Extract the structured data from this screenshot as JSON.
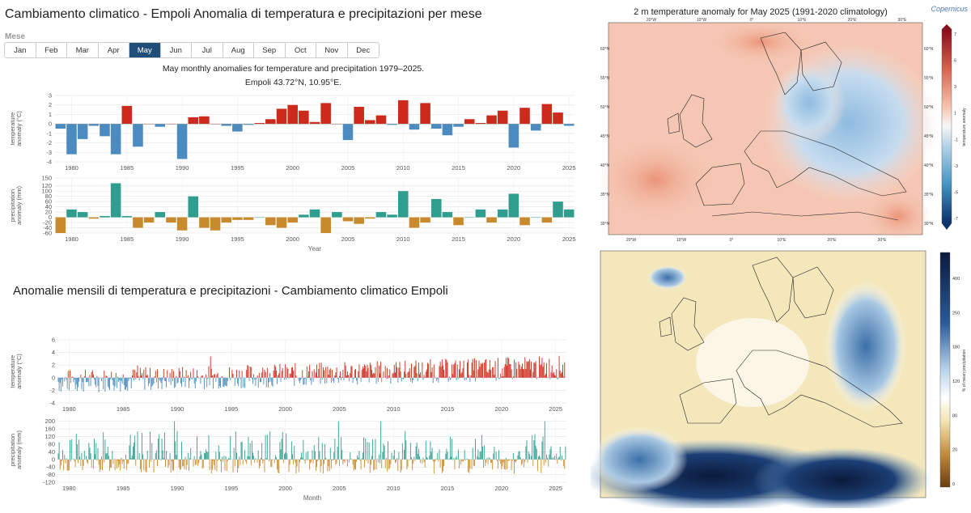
{
  "header": {
    "title": "Cambiamento climatico - Empoli Anomalia di temperatura e precipitazioni per mese",
    "month_label": "Mese",
    "months": [
      "Jan",
      "Feb",
      "Mar",
      "Apr",
      "May",
      "Jun",
      "Jul",
      "Aug",
      "Sep",
      "Oct",
      "Nov",
      "Dec"
    ],
    "selected_month": "May"
  },
  "section2": {
    "title": "Anomalie mensili di temperatura e precipitazioni - Cambiamento climatico Empoli"
  },
  "colors": {
    "warm": "#cc2a1a",
    "cold": "#4b8bbf",
    "wet": "#2f9e8f",
    "dry": "#c88a2c",
    "selected_month_bg": "#1f4e79"
  },
  "chart_data": [
    {
      "type": "bar",
      "title": "May monthly anomalies for temperature and precipitation 1979–2025.",
      "subtitle": "Empoli 43.72°N, 10.95°E.",
      "xlabel": "",
      "ylabel": "temperature anomaly (°C)",
      "ylim": [
        -4,
        3
      ],
      "yticks": [
        -4,
        -3,
        -2,
        -1,
        0,
        1,
        2,
        3
      ],
      "xticks": [
        1980,
        1985,
        1990,
        1995,
        2000,
        2005,
        2010,
        2015,
        2020,
        2025
      ],
      "x": [
        1979,
        1980,
        1981,
        1982,
        1983,
        1984,
        1985,
        1986,
        1987,
        1988,
        1989,
        1990,
        1991,
        1992,
        1993,
        1994,
        1995,
        1996,
        1997,
        1998,
        1999,
        2000,
        2001,
        2002,
        2003,
        2004,
        2005,
        2006,
        2007,
        2008,
        2009,
        2010,
        2011,
        2012,
        2013,
        2014,
        2015,
        2016,
        2017,
        2018,
        2019,
        2020,
        2021,
        2022,
        2023,
        2024,
        2025
      ],
      "values": [
        -0.5,
        -3.2,
        -1.6,
        -0.2,
        -1.3,
        -3.2,
        1.9,
        -2.4,
        0.0,
        -0.3,
        0.0,
        -3.7,
        0.7,
        0.8,
        0.0,
        -0.2,
        -0.8,
        -0.1,
        0.1,
        0.5,
        1.6,
        2.0,
        1.4,
        0.2,
        2.2,
        0.0,
        -1.7,
        1.8,
        0.4,
        0.9,
        -0.1,
        2.5,
        -0.6,
        2.2,
        -0.5,
        -1.2,
        -0.3,
        0.5,
        0.1,
        0.9,
        1.4,
        -2.5,
        1.7,
        -0.7,
        2.1,
        1.2,
        -0.2
      ],
      "grid": true
    },
    {
      "type": "bar",
      "title": "",
      "xlabel": "Year",
      "ylabel": "precipitation anomaly (mm)",
      "ylim": [
        -60,
        150
      ],
      "yticks": [
        -60,
        -40,
        -20,
        0,
        20,
        40,
        60,
        80,
        100,
        120,
        150
      ],
      "xticks": [
        1980,
        1985,
        1990,
        1995,
        2000,
        2005,
        2010,
        2015,
        2020,
        2025
      ],
      "x": [
        1979,
        1980,
        1981,
        1982,
        1983,
        1984,
        1985,
        1986,
        1987,
        1988,
        1989,
        1990,
        1991,
        1992,
        1993,
        1994,
        1995,
        1996,
        1997,
        1998,
        1999,
        2000,
        2001,
        2002,
        2003,
        2004,
        2005,
        2006,
        2007,
        2008,
        2009,
        2010,
        2011,
        2012,
        2013,
        2014,
        2015,
        2016,
        2017,
        2018,
        2019,
        2020,
        2021,
        2022,
        2023,
        2024,
        2025
      ],
      "values": [
        -60,
        30,
        20,
        -5,
        5,
        130,
        5,
        -40,
        -20,
        20,
        -20,
        -50,
        80,
        -40,
        -50,
        -20,
        -10,
        -10,
        0,
        -30,
        -40,
        -20,
        10,
        30,
        -60,
        20,
        -15,
        -25,
        -5,
        20,
        10,
        100,
        -40,
        -20,
        70,
        20,
        -30,
        0,
        30,
        -20,
        30,
        90,
        -30,
        0,
        -20,
        60,
        30
      ],
      "grid": true
    },
    {
      "type": "bar",
      "title": "",
      "xlabel": "",
      "ylabel": "temperature anomaly (°C)",
      "ylim": [
        -4,
        6
      ],
      "yticks": [
        -4,
        -2,
        0,
        2,
        4,
        6
      ],
      "xticks": [
        1980,
        1985,
        1990,
        1995,
        2000,
        2005,
        2010,
        2015,
        2020,
        2025
      ],
      "x_start": 1979,
      "x_end": 2025,
      "note": "one bar per month 1979–2025",
      "grid": true
    },
    {
      "type": "bar",
      "title": "",
      "xlabel": "Month",
      "ylabel": "precipitation anomaly (mm)",
      "ylim": [
        -120,
        220
      ],
      "yticks": [
        -120,
        -100,
        -80,
        -60,
        -40,
        -20,
        0,
        20,
        40,
        60,
        80,
        100,
        120,
        140,
        160,
        180,
        200
      ],
      "xticks": [
        1980,
        1985,
        1990,
        1995,
        2000,
        2005,
        2010,
        2015,
        2020,
        2025
      ],
      "x_start": 1979,
      "x_end": 2025,
      "grid": true
    }
  ],
  "maps": {
    "temperature": {
      "title": "2 m temperature anomaly for May 2025 (1991-2020 climatology)",
      "logo": "Copernicus",
      "colorbar_label": "temperature anomaly",
      "colorbar_ticks": [
        "7",
        "5",
        "3",
        "1",
        "-1",
        "-3",
        "-5",
        "-7"
      ],
      "lat_labels": [
        "60°N",
        "55°N",
        "50°N",
        "45°N",
        "40°N",
        "35°N",
        "30°N"
      ],
      "lon_labels": [
        "20°W",
        "10°W",
        "0°",
        "10°E",
        "20°E",
        "30°E"
      ]
    },
    "precipitation": {
      "colorbar_label": "% of mean precipitation",
      "colorbar_ticks": [
        "400",
        "250",
        "180",
        "120",
        "80",
        "20",
        "0"
      ]
    }
  }
}
